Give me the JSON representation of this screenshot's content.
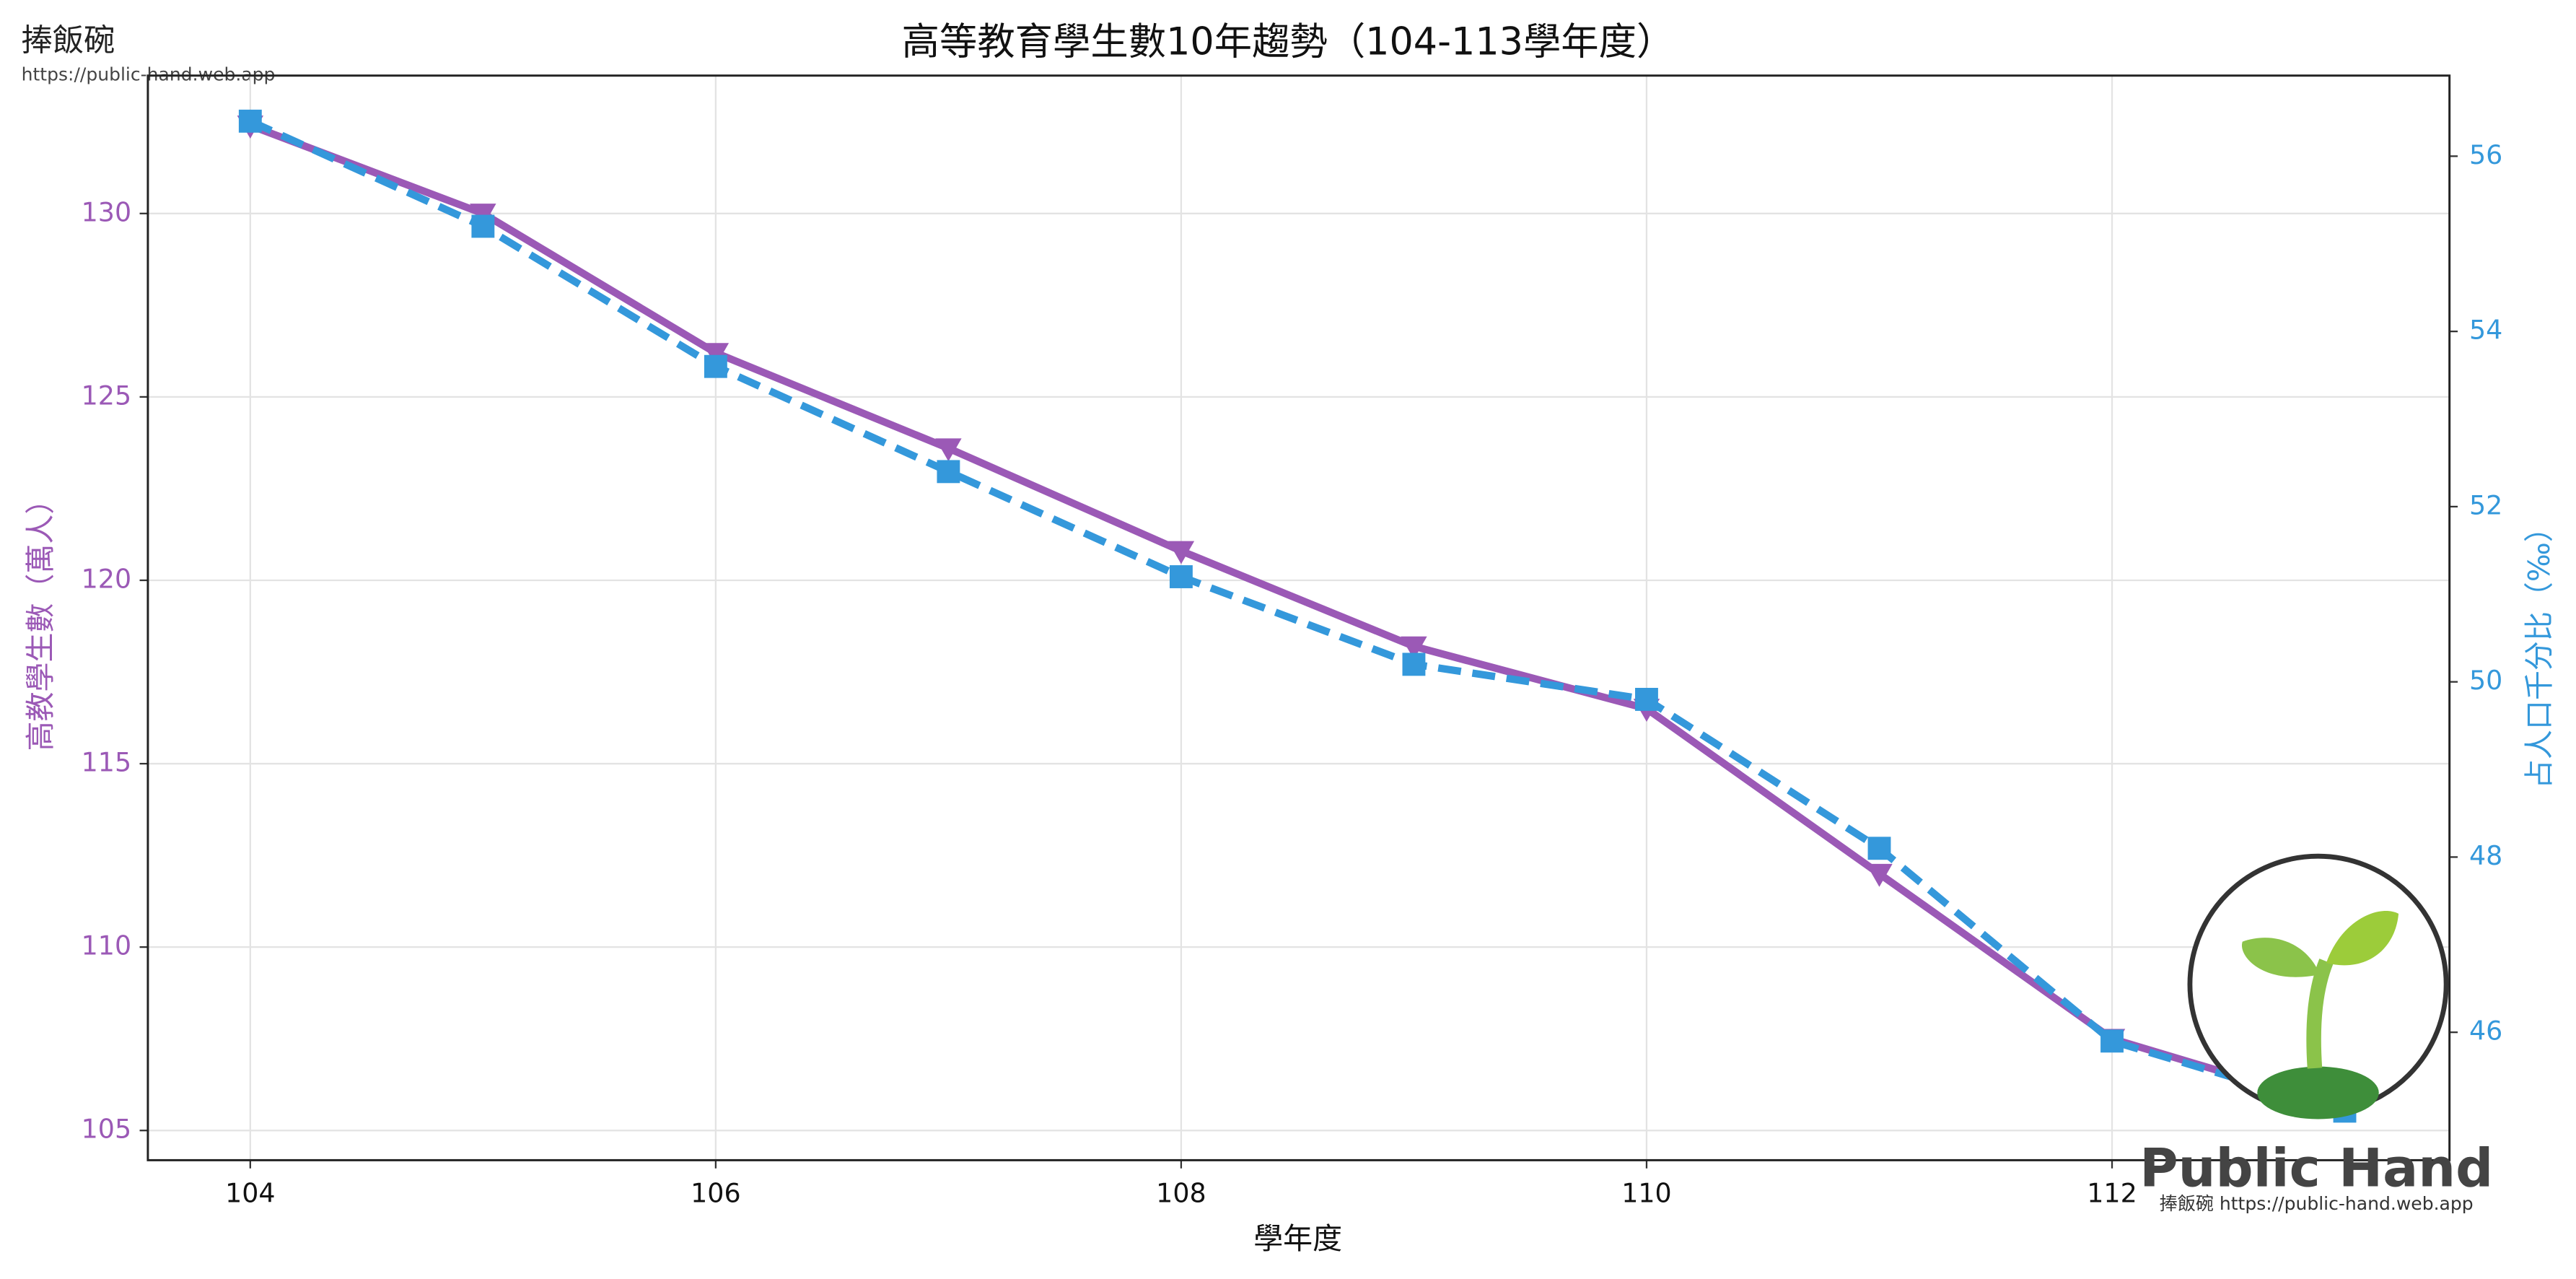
{
  "chart_data": {
    "type": "line",
    "title": "高等教育學生數10年趨勢（104-113學年度）",
    "x_label": "學年度",
    "y_label": "高教學生數（萬人）",
    "y2_label": "占人口千分比（‰）",
    "x": [
      104,
      105,
      106,
      107,
      108,
      109,
      110,
      111,
      112,
      113
    ],
    "series": [
      {
        "name": "高教學生數（萬人）",
        "color": "#9b59b6",
        "marker": "triangle-down",
        "dash": false,
        "axis": "y",
        "values": [
          132.4,
          130.0,
          126.2,
          123.6,
          120.8,
          118.2,
          116.5,
          112.0,
          107.5,
          105.6
        ]
      },
      {
        "name": "占人口千分比（‰）",
        "color": "#3498db",
        "marker": "square",
        "dash": true,
        "axis": "y2",
        "values": [
          56.4,
          55.2,
          53.6,
          52.4,
          51.2,
          50.2,
          49.8,
          48.1,
          45.9,
          45.1
        ]
      }
    ],
    "xlim": [
      103.56,
      113.45
    ],
    "xticks": [
      104,
      106,
      108,
      110,
      112
    ],
    "ylim": [
      104.19,
      133.76
    ],
    "yticks": [
      105,
      110,
      115,
      120,
      125,
      130
    ],
    "y2lim": [
      44.54,
      56.92
    ],
    "y2ticks": [
      46,
      48,
      50,
      52,
      54,
      56
    ],
    "grid": true
  },
  "branding": {
    "site_name": "捧飯碗",
    "site_url": "https://public-hand.web.app",
    "logo_title": "Public Hand",
    "logo_caption": "捧飯碗 https://public-hand.web.app"
  }
}
